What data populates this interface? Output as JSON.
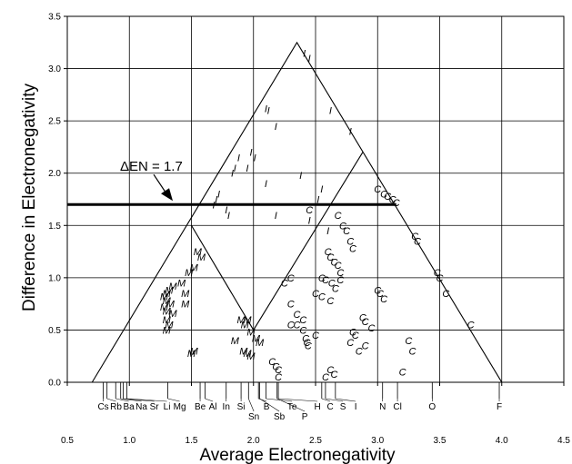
{
  "chart_data": {
    "type": "scatter",
    "xlabel": "Average Electronegativity",
    "ylabel": "Difference in Electronegativity",
    "xlim": [
      0.5,
      4.5
    ],
    "ylim": [
      0.0,
      3.5
    ],
    "xticks": [
      "0.5",
      "1.0",
      "1.5",
      "2.0",
      "2.5",
      "3.0",
      "3.5",
      "4.0",
      "4.5"
    ],
    "yticks": [
      "0.0",
      "0.5",
      "1.0",
      "1.5",
      "2.0",
      "2.5",
      "3.0",
      "3.5"
    ],
    "grid": true,
    "triangle": {
      "outer": [
        [
          0.7,
          0.0
        ],
        [
          2.35,
          3.25
        ],
        [
          4.0,
          0.0
        ]
      ],
      "inner_lines": [
        [
          [
            1.5,
            1.5
          ],
          [
            2.0,
            0.5
          ]
        ],
        [
          [
            2.0,
            0.5
          ],
          [
            2.88,
            2.2
          ]
        ]
      ]
    },
    "threshold_line": {
      "y": 1.7,
      "x_range": [
        0.5,
        3.15
      ]
    },
    "annotation": {
      "text": "ΔEN = 1.7",
      "x": 1.35,
      "y": 1.9
    },
    "elements": [
      {
        "symbol": "Cs",
        "en": 0.79
      },
      {
        "symbol": "Rb",
        "en": 0.82
      },
      {
        "symbol": "Ba",
        "en": 0.89
      },
      {
        "symbol": "Na",
        "en": 0.93
      },
      {
        "symbol": "Sr",
        "en": 0.95
      },
      {
        "symbol": "Li",
        "en": 0.98
      },
      {
        "symbol": "Mg",
        "en": 1.31
      },
      {
        "symbol": "Be",
        "en": 1.57
      },
      {
        "symbol": "Al",
        "en": 1.61
      },
      {
        "symbol": "In",
        "en": 1.78
      },
      {
        "symbol": "Si",
        "en": 1.9
      },
      {
        "symbol": "Sn",
        "en": 1.96
      },
      {
        "symbol": "B",
        "en": 2.04
      },
      {
        "symbol": "Sb",
        "en": 2.05
      },
      {
        "symbol": "Te",
        "en": 2.1
      },
      {
        "symbol": "P",
        "en": 2.19
      },
      {
        "symbol": "H",
        "en": 2.2
      },
      {
        "symbol": "C",
        "en": 2.55
      },
      {
        "symbol": "S",
        "en": 2.58
      },
      {
        "symbol": "I",
        "en": 2.66
      },
      {
        "symbol": "N",
        "en": 3.04
      },
      {
        "symbol": "Cl",
        "en": 3.16
      },
      {
        "symbol": "O",
        "en": 3.44
      },
      {
        "symbol": "F",
        "en": 3.98
      }
    ],
    "series": [
      {
        "marker": "I",
        "points": [
          [
            2.41,
            3.15
          ],
          [
            2.45,
            3.1
          ],
          [
            2.1,
            2.62
          ],
          [
            2.12,
            2.6
          ],
          [
            2.18,
            2.45
          ],
          [
            1.98,
            2.2
          ],
          [
            2.01,
            2.15
          ],
          [
            1.95,
            2.05
          ],
          [
            1.88,
            2.15
          ],
          [
            1.85,
            2.05
          ],
          [
            1.83,
            2.0
          ],
          [
            1.72,
            1.8
          ],
          [
            1.7,
            1.75
          ],
          [
            1.68,
            1.7
          ],
          [
            1.78,
            1.65
          ],
          [
            1.8,
            1.6
          ],
          [
            2.1,
            1.9
          ],
          [
            2.18,
            1.6
          ],
          [
            2.55,
            1.85
          ],
          [
            2.52,
            1.75
          ],
          [
            2.62,
            2.6
          ],
          [
            2.78,
            2.4
          ],
          [
            2.38,
            1.98
          ],
          [
            2.45,
            1.55
          ],
          [
            2.6,
            1.45
          ]
        ]
      },
      {
        "marker": "M",
        "points": [
          [
            1.55,
            1.25
          ],
          [
            1.58,
            1.2
          ],
          [
            1.52,
            1.1
          ],
          [
            1.48,
            1.05
          ],
          [
            1.42,
            0.95
          ],
          [
            1.45,
            0.85
          ],
          [
            1.35,
            0.92
          ],
          [
            1.32,
            0.88
          ],
          [
            1.3,
            0.85
          ],
          [
            1.28,
            0.82
          ],
          [
            1.3,
            0.78
          ],
          [
            1.33,
            0.75
          ],
          [
            1.28,
            0.72
          ],
          [
            1.3,
            0.68
          ],
          [
            1.35,
            0.66
          ],
          [
            1.3,
            0.6
          ],
          [
            1.32,
            0.55
          ],
          [
            1.3,
            0.5
          ],
          [
            1.52,
            0.3
          ],
          [
            1.5,
            0.28
          ],
          [
            1.45,
            0.75
          ],
          [
            1.9,
            0.6
          ],
          [
            1.93,
            0.55
          ],
          [
            1.98,
            0.48
          ],
          [
            2.02,
            0.42
          ],
          [
            2.05,
            0.38
          ],
          [
            1.92,
            0.3
          ],
          [
            1.95,
            0.28
          ],
          [
            1.98,
            0.25
          ],
          [
            1.85,
            0.4
          ],
          [
            1.95,
            0.6
          ]
        ]
      },
      {
        "marker": "C",
        "points": [
          [
            3.0,
            1.85
          ],
          [
            3.05,
            1.8
          ],
          [
            3.08,
            1.78
          ],
          [
            3.12,
            1.75
          ],
          [
            3.15,
            1.72
          ],
          [
            3.3,
            1.4
          ],
          [
            3.32,
            1.35
          ],
          [
            3.48,
            1.05
          ],
          [
            3.5,
            1.0
          ],
          [
            3.55,
            0.85
          ],
          [
            3.75,
            0.55
          ],
          [
            2.45,
            1.65
          ],
          [
            2.68,
            1.6
          ],
          [
            2.72,
            1.5
          ],
          [
            2.75,
            1.45
          ],
          [
            2.78,
            1.35
          ],
          [
            2.8,
            1.28
          ],
          [
            2.6,
            1.25
          ],
          [
            2.62,
            1.2
          ],
          [
            2.65,
            1.15
          ],
          [
            2.68,
            1.12
          ],
          [
            2.7,
            1.05
          ],
          [
            2.55,
            1.0
          ],
          [
            2.58,
            0.98
          ],
          [
            2.63,
            0.95
          ],
          [
            2.66,
            0.9
          ],
          [
            2.5,
            0.85
          ],
          [
            2.55,
            0.82
          ],
          [
            2.7,
            0.98
          ],
          [
            2.62,
            0.78
          ],
          [
            2.3,
            1.0
          ],
          [
            2.25,
            0.95
          ],
          [
            2.3,
            0.75
          ],
          [
            2.35,
            0.65
          ],
          [
            2.4,
            0.6
          ],
          [
            2.4,
            0.5
          ],
          [
            2.42,
            0.42
          ],
          [
            2.43,
            0.38
          ],
          [
            2.44,
            0.35
          ],
          [
            2.5,
            0.45
          ],
          [
            2.3,
            0.55
          ],
          [
            2.35,
            0.55
          ],
          [
            3.0,
            0.88
          ],
          [
            3.02,
            0.85
          ],
          [
            3.05,
            0.8
          ],
          [
            2.88,
            0.62
          ],
          [
            2.9,
            0.58
          ],
          [
            2.95,
            0.52
          ],
          [
            2.8,
            0.48
          ],
          [
            2.82,
            0.45
          ],
          [
            2.78,
            0.38
          ],
          [
            2.85,
            0.3
          ],
          [
            2.9,
            0.35
          ],
          [
            3.25,
            0.4
          ],
          [
            3.28,
            0.3
          ],
          [
            3.2,
            0.1
          ],
          [
            2.62,
            0.12
          ],
          [
            2.65,
            0.08
          ],
          [
            2.58,
            0.05
          ],
          [
            2.15,
            0.2
          ],
          [
            2.18,
            0.15
          ],
          [
            2.2,
            0.12
          ],
          [
            2.2,
            0.05
          ]
        ]
      }
    ]
  }
}
